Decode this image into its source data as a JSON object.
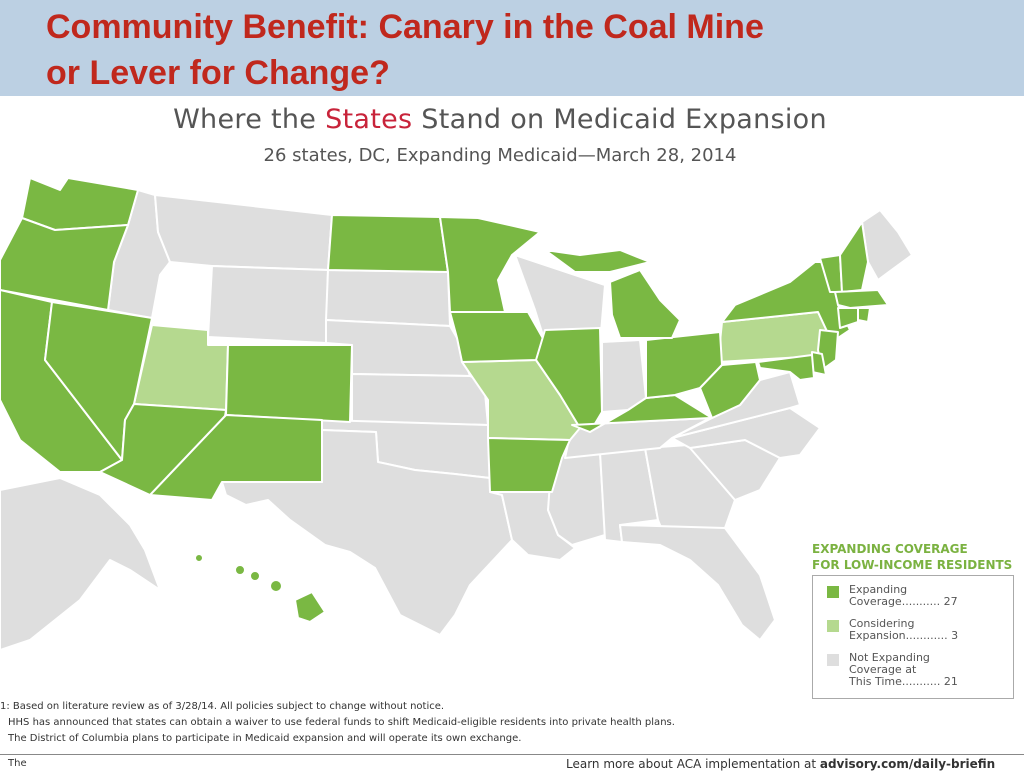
{
  "slide": {
    "title_line1": "Community Benefit: Canary in the Coal Mine",
    "title_line2": "or Lever for Change?"
  },
  "map": {
    "title_pre": "Where the ",
    "title_highlight": "States",
    "title_post": " Stand on Medicaid Expansion",
    "subtitle": "26 states, DC, Expanding Medicaid—March 28, 2014",
    "colors": {
      "expanding": "#7ab843",
      "considering": "#b5d98f",
      "not_expanding": "#dedede",
      "border": "#ffffff"
    }
  },
  "legend": {
    "title_line1": "EXPANDING COVERAGE",
    "title_line2": "FOR LOW-INCOME RESIDENTS",
    "items": [
      {
        "line1": "Expanding",
        "line2": "Coverage........... 27",
        "line3": "",
        "color": "#7ab843"
      },
      {
        "line1": "Considering",
        "line2": "Expansion............ 3",
        "line3": "",
        "color": "#b5d98f"
      },
      {
        "line1": "Not Expanding",
        "line2": "Coverage at",
        "line3": "This Time........... 21",
        "color": "#dedede"
      }
    ]
  },
  "footnotes": {
    "line1": "1: Based on literature review as of 3/28/14. All policies subject to change without notice.",
    "line2": "HHS has announced that states can obtain a waiver to use federal funds to shift Medicaid-eligible residents into private health plans.",
    "line3": "The District of Columbia plans to participate in Medicaid expansion and will operate its own exchange."
  },
  "footer": {
    "left": "The",
    "right_pre": "Learn more about ACA implementation at ",
    "right_link": "advisory.com/daily-briefin"
  }
}
